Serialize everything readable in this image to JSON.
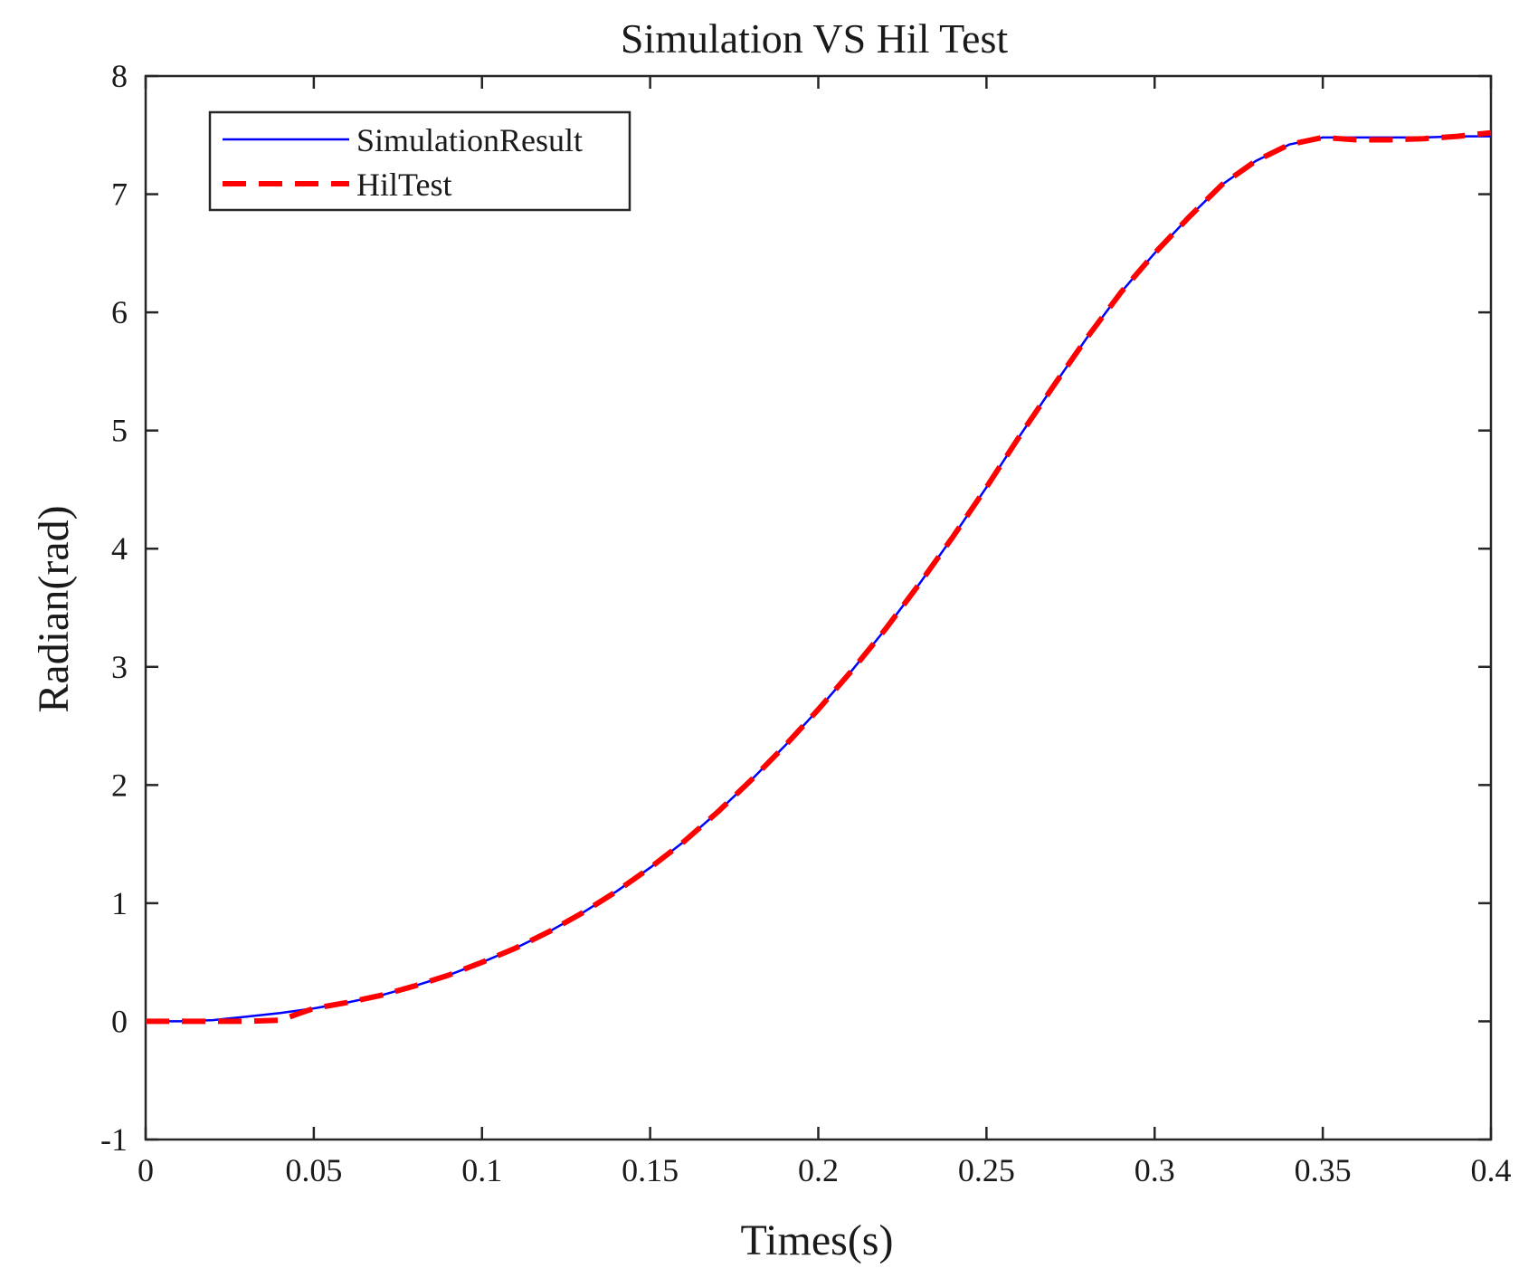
{
  "chart_data": {
    "type": "line",
    "title": "Simulation VS Hil Test",
    "xlabel": "Times(s)",
    "ylabel": "Radian(rad)",
    "xlim": [
      0,
      0.4
    ],
    "ylim": [
      -1,
      8
    ],
    "x_ticks": [
      0,
      0.05,
      0.1,
      0.15,
      0.2,
      0.25,
      0.3,
      0.35,
      0.4
    ],
    "x_tick_labels": [
      "0",
      "0.05",
      "0.1",
      "0.15",
      "0.2",
      "0.25",
      "0.3",
      "0.35",
      "0.4"
    ],
    "y_ticks": [
      -1,
      0,
      1,
      2,
      3,
      4,
      5,
      6,
      7,
      8
    ],
    "y_tick_labels": [
      "-1",
      "0",
      "1",
      "2",
      "3",
      "4",
      "5",
      "6",
      "7",
      "8"
    ],
    "grid": false,
    "legend_position": "top-left",
    "series": [
      {
        "name": "SimulationResult",
        "color": "#0000ff",
        "style": "solid",
        "x": [
          0,
          0.01,
          0.02,
          0.03,
          0.04,
          0.05,
          0.06,
          0.07,
          0.08,
          0.09,
          0.1,
          0.11,
          0.12,
          0.13,
          0.14,
          0.15,
          0.16,
          0.17,
          0.18,
          0.19,
          0.2,
          0.21,
          0.22,
          0.23,
          0.24,
          0.25,
          0.26,
          0.27,
          0.28,
          0.29,
          0.3,
          0.31,
          0.32,
          0.33,
          0.34,
          0.35,
          0.36,
          0.37,
          0.38,
          0.39,
          0.4
        ],
        "y": [
          0,
          0,
          0.01,
          0.04,
          0.07,
          0.11,
          0.16,
          0.22,
          0.3,
          0.39,
          0.5,
          0.62,
          0.76,
          0.92,
          1.1,
          1.3,
          1.52,
          1.77,
          2.04,
          2.33,
          2.64,
          2.97,
          3.32,
          3.7,
          4.1,
          4.52,
          4.96,
          5.38,
          5.79,
          6.17,
          6.5,
          6.8,
          7.08,
          7.28,
          7.42,
          7.48,
          7.48,
          7.48,
          7.48,
          7.49,
          7.49
        ]
      },
      {
        "name": "HilTest",
        "color": "#ff0000",
        "style": "dashed",
        "x": [
          0,
          0.01,
          0.02,
          0.03,
          0.04,
          0.045,
          0.05,
          0.06,
          0.07,
          0.08,
          0.09,
          0.1,
          0.11,
          0.12,
          0.13,
          0.14,
          0.15,
          0.16,
          0.17,
          0.18,
          0.19,
          0.2,
          0.21,
          0.22,
          0.23,
          0.24,
          0.25,
          0.26,
          0.27,
          0.28,
          0.29,
          0.3,
          0.31,
          0.32,
          0.33,
          0.34,
          0.35,
          0.36,
          0.37,
          0.38,
          0.39,
          0.4
        ],
        "y": [
          0,
          0,
          0,
          0,
          0.01,
          0.06,
          0.11,
          0.16,
          0.22,
          0.3,
          0.39,
          0.5,
          0.62,
          0.76,
          0.92,
          1.1,
          1.3,
          1.52,
          1.77,
          2.04,
          2.33,
          2.64,
          2.97,
          3.32,
          3.7,
          4.1,
          4.52,
          4.96,
          5.38,
          5.79,
          6.17,
          6.5,
          6.8,
          7.08,
          7.28,
          7.42,
          7.48,
          7.46,
          7.46,
          7.47,
          7.49,
          7.52
        ]
      }
    ]
  }
}
